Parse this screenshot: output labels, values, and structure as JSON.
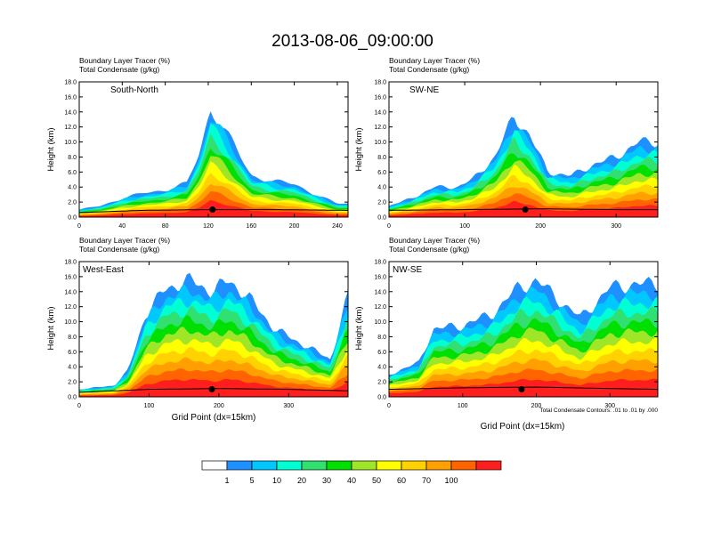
{
  "page": {
    "title": "2013-08-06_09:00:00"
  },
  "colorbar": {
    "labels": [
      "1",
      "5",
      "10",
      "20",
      "30",
      "40",
      "50",
      "60",
      "70",
      "100"
    ],
    "colors": [
      "#ffffff",
      "#1e90ff",
      "#00c8ff",
      "#00ffd2",
      "#30e070",
      "#00e000",
      "#a0e628",
      "#ffff00",
      "#ffd200",
      "#ffa000",
      "#ff6400",
      "#ff1e1e"
    ]
  },
  "chart_data": [
    {
      "type": "heatmap",
      "panel_label": "South-North",
      "header_line1": "Boundary Layer Tracer    (%)",
      "header_line2": "Total Condensate    (g/kg)",
      "ylabel": "Height (km)",
      "xlabel": "",
      "xlim": [
        0,
        250
      ],
      "ylim": [
        0,
        18
      ],
      "xticks": [
        "0",
        "40",
        "80",
        "120",
        "160",
        "200",
        "240"
      ],
      "yticks": [
        "0.0",
        "2.0",
        "4.0",
        "6.0",
        "8.0",
        "10.0",
        "12.0",
        "14.0",
        "16.0",
        "18.0"
      ],
      "marker_x": 124,
      "profile": [
        [
          0,
          1.0
        ],
        [
          20,
          1.5
        ],
        [
          40,
          2.5
        ],
        [
          60,
          3.2
        ],
        [
          80,
          3.6
        ],
        [
          100,
          4.5
        ],
        [
          112,
          8.5
        ],
        [
          122,
          14.5
        ],
        [
          132,
          12.5
        ],
        [
          148,
          8.5
        ],
        [
          160,
          5.5
        ],
        [
          180,
          4.8
        ],
        [
          200,
          4.4
        ],
        [
          220,
          3.0
        ],
        [
          240,
          1.8
        ],
        [
          250,
          1.8
        ]
      ],
      "top_layer": [
        [
          0,
          0.6
        ],
        [
          60,
          0.9
        ],
        [
          120,
          1.0
        ],
        [
          180,
          1.0
        ],
        [
          250,
          0.9
        ]
      ]
    },
    {
      "type": "heatmap",
      "panel_label": "SW-NE",
      "header_line1": "Boundary Layer Tracer    (%)",
      "header_line2": "Total Condensate    (g/kg)",
      "ylabel": "Height (km)",
      "xlabel": "",
      "xlim": [
        0,
        355
      ],
      "ylim": [
        0,
        18
      ],
      "xticks": [
        "0",
        "100",
        "200",
        "300"
      ],
      "yticks": [
        "0.0",
        "2.0",
        "4.0",
        "6.0",
        "8.0",
        "10.0",
        "12.0",
        "14.0",
        "16.0",
        "18.0"
      ],
      "marker_x": 180,
      "profile": [
        [
          0,
          1.5
        ],
        [
          30,
          2.5
        ],
        [
          60,
          4.0
        ],
        [
          90,
          4.0
        ],
        [
          110,
          5.0
        ],
        [
          140,
          8.0
        ],
        [
          165,
          13.5
        ],
        [
          185,
          11.0
        ],
        [
          210,
          6.0
        ],
        [
          240,
          5.5
        ],
        [
          270,
          7.0
        ],
        [
          300,
          8.0
        ],
        [
          330,
          10.0
        ],
        [
          355,
          10.0
        ]
      ],
      "top_layer": [
        [
          0,
          0.9
        ],
        [
          100,
          1.0
        ],
        [
          200,
          1.1
        ],
        [
          300,
          1.0
        ],
        [
          355,
          1.0
        ]
      ]
    },
    {
      "type": "heatmap",
      "panel_label": "West-East",
      "header_line1": "Boundary Layer Tracer    (%)",
      "header_line2": "Total Condensate    (g/kg)",
      "ylabel": "Height (km)",
      "xlabel": "Grid Point (dx=15km)",
      "xlim": [
        0,
        385
      ],
      "ylim": [
        0,
        18
      ],
      "xticks": [
        "0",
        "100",
        "200",
        "300"
      ],
      "yticks": [
        "0.0",
        "2.0",
        "4.0",
        "6.0",
        "8.0",
        "10.0",
        "12.0",
        "14.0",
        "16.0",
        "18.0"
      ],
      "marker_x": 190,
      "profile": [
        [
          0,
          1.0
        ],
        [
          50,
          1.5
        ],
        [
          70,
          3.5
        ],
        [
          95,
          11.0
        ],
        [
          125,
          14.5
        ],
        [
          160,
          15.5
        ],
        [
          190,
          14.0
        ],
        [
          215,
          15.5
        ],
        [
          245,
          13.0
        ],
        [
          280,
          9.0
        ],
        [
          320,
          7.0
        ],
        [
          360,
          5.0
        ],
        [
          385,
          13.5
        ]
      ],
      "top_layer": [
        [
          0,
          0.6
        ],
        [
          100,
          1.0
        ],
        [
          200,
          1.1
        ],
        [
          300,
          1.0
        ],
        [
          385,
          0.8
        ]
      ]
    },
    {
      "type": "heatmap",
      "panel_label": "NW-SE",
      "header_line1": "Boundary Layer Tracer    (%)",
      "header_line2": "Total Condensate    (g/kg)",
      "ylabel": "Height (km)",
      "xlabel": "Grid Point (dx=15km)",
      "footnote": "Total Condensate Contours: .01 to .01 by .000",
      "xlim": [
        0,
        365
      ],
      "ylim": [
        0,
        18
      ],
      "xticks": [
        "0",
        "100",
        "200",
        "300"
      ],
      "yticks": [
        "0.0",
        "2.0",
        "4.0",
        "6.0",
        "8.0",
        "10.0",
        "12.0",
        "14.0",
        "16.0",
        "18.0"
      ],
      "marker_x": 180,
      "profile": [
        [
          0,
          3.0
        ],
        [
          40,
          4.5
        ],
        [
          60,
          9.0
        ],
        [
          100,
          9.5
        ],
        [
          140,
          11.0
        ],
        [
          175,
          14.5
        ],
        [
          200,
          15.5
        ],
        [
          230,
          13.0
        ],
        [
          260,
          10.5
        ],
        [
          300,
          14.5
        ],
        [
          330,
          15.0
        ],
        [
          365,
          15.0
        ]
      ],
      "top_layer": [
        [
          0,
          1.0
        ],
        [
          100,
          1.2
        ],
        [
          200,
          1.3
        ],
        [
          300,
          1.1
        ],
        [
          365,
          1.0
        ]
      ]
    }
  ]
}
